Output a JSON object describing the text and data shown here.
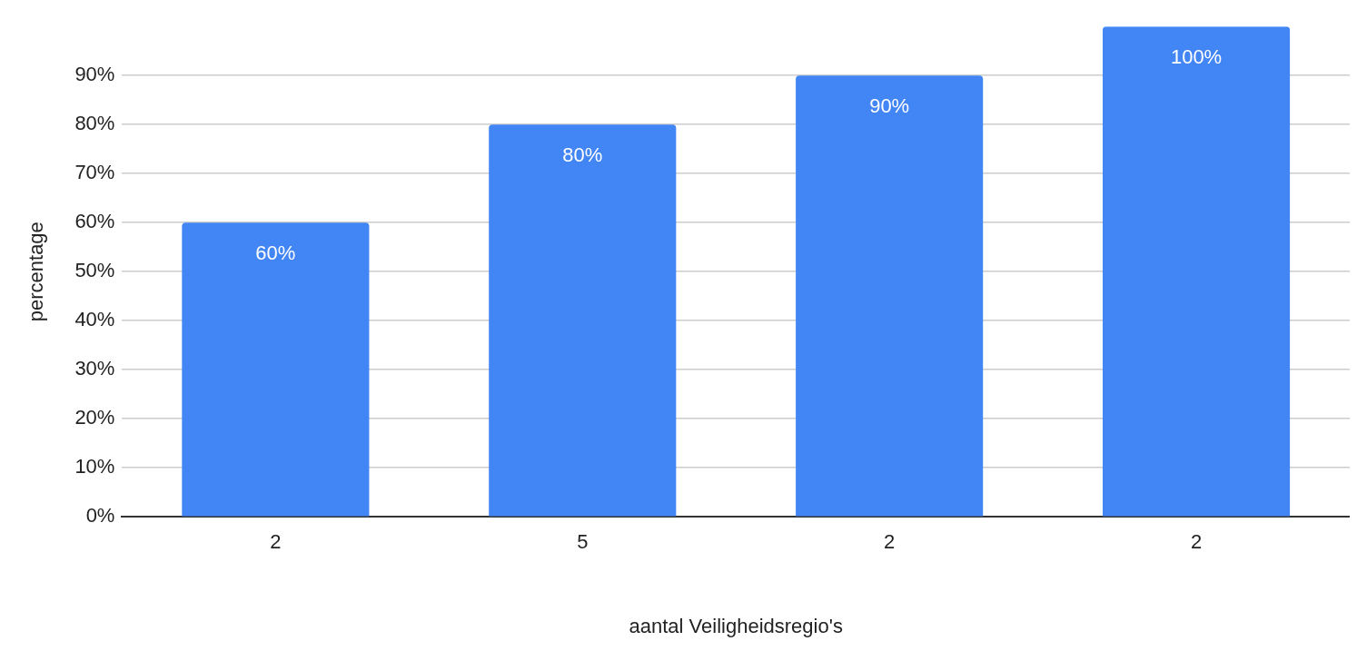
{
  "chart_data": {
    "type": "bar",
    "xlabel": "aantal Veiligheidsregio's",
    "ylabel": "percentage",
    "categories": [
      "2",
      "5",
      "2",
      "2"
    ],
    "values": [
      60,
      80,
      90,
      100
    ],
    "value_labels": [
      "60%",
      "80%",
      "90%",
      "100%"
    ],
    "color": "#4285f4",
    "ylim": [
      0,
      100
    ],
    "yticks": [
      {
        "value": 0,
        "label": "0%"
      },
      {
        "value": 10,
        "label": "10%"
      },
      {
        "value": 20,
        "label": "20%"
      },
      {
        "value": 30,
        "label": "30%"
      },
      {
        "value": 40,
        "label": "40%"
      },
      {
        "value": 50,
        "label": "50%"
      },
      {
        "value": 60,
        "label": "60%"
      },
      {
        "value": 70,
        "label": "70%"
      },
      {
        "value": 80,
        "label": "80%"
      },
      {
        "value": 90,
        "label": "90%"
      }
    ],
    "grid": "y",
    "legend": false
  }
}
